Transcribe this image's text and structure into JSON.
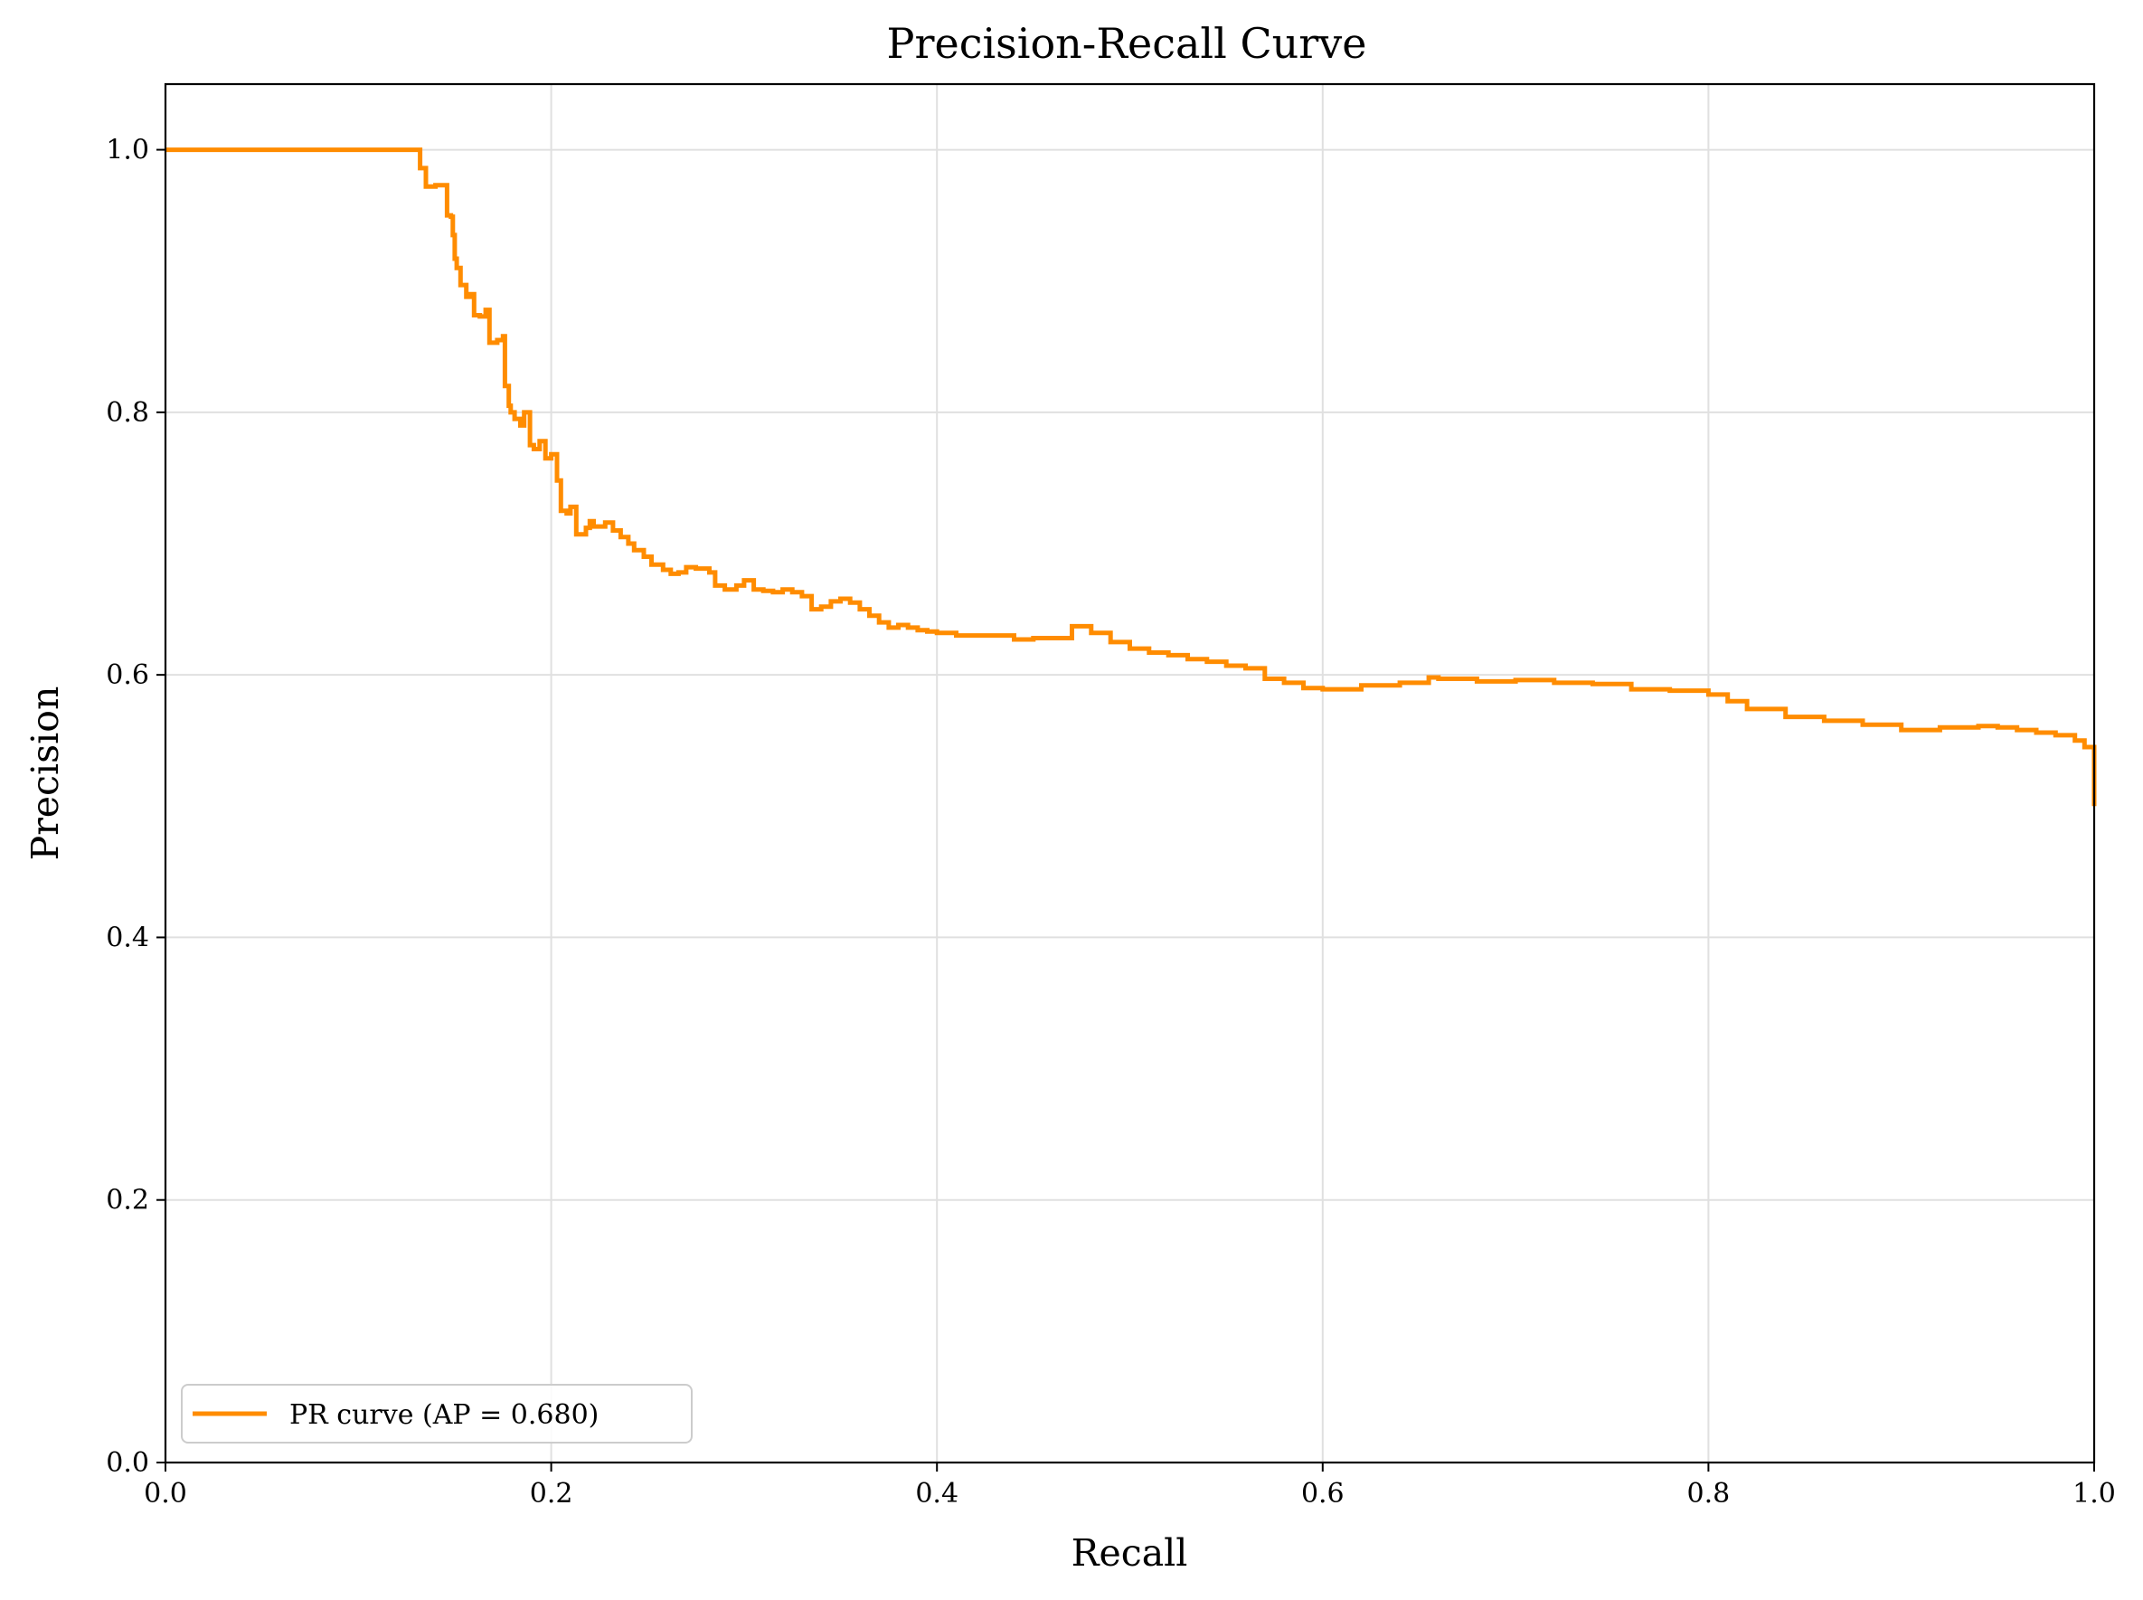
{
  "chart_data": {
    "type": "line",
    "title": "Precision-Recall Curve",
    "xlabel": "Recall",
    "ylabel": "Precision",
    "xlim": [
      0.0,
      1.0
    ],
    "ylim": [
      0.0,
      1.05
    ],
    "x_ticks": [
      "0.0",
      "0.2",
      "0.4",
      "0.6",
      "0.8",
      "1.0"
    ],
    "y_ticks": [
      "0.0",
      "0.2",
      "0.4",
      "0.6",
      "0.8",
      "1.0"
    ],
    "grid": true,
    "legend_position": "lower-left",
    "line_color": "#ff8c00",
    "series": [
      {
        "name": "PR curve (AP = 0.680)",
        "x": [
          0.0,
          0.13,
          0.132,
          0.135,
          0.14,
          0.146,
          0.148,
          0.149,
          0.15,
          0.151,
          0.153,
          0.156,
          0.158,
          0.16,
          0.163,
          0.166,
          0.168,
          0.172,
          0.175,
          0.176,
          0.178,
          0.179,
          0.181,
          0.184,
          0.186,
          0.189,
          0.191,
          0.194,
          0.197,
          0.2,
          0.203,
          0.205,
          0.208,
          0.21,
          0.213,
          0.218,
          0.22,
          0.222,
          0.228,
          0.232,
          0.236,
          0.24,
          0.243,
          0.248,
          0.252,
          0.258,
          0.262,
          0.266,
          0.27,
          0.275,
          0.282,
          0.285,
          0.29,
          0.296,
          0.3,
          0.305,
          0.31,
          0.315,
          0.32,
          0.325,
          0.33,
          0.335,
          0.34,
          0.345,
          0.35,
          0.355,
          0.36,
          0.365,
          0.37,
          0.375,
          0.38,
          0.385,
          0.39,
          0.395,
          0.4,
          0.41,
          0.42,
          0.43,
          0.44,
          0.45,
          0.47,
          0.48,
          0.49,
          0.5,
          0.51,
          0.52,
          0.53,
          0.54,
          0.55,
          0.56,
          0.57,
          0.58,
          0.59,
          0.6,
          0.62,
          0.64,
          0.655,
          0.66,
          0.68,
          0.7,
          0.72,
          0.74,
          0.76,
          0.78,
          0.8,
          0.81,
          0.82,
          0.84,
          0.86,
          0.88,
          0.9,
          0.92,
          0.94,
          0.95,
          0.96,
          0.97,
          0.98,
          0.99,
          0.995,
          1.0,
          1.0
        ],
        "y": [
          1.0,
          1.0,
          0.986,
          0.972,
          0.973,
          0.95,
          0.949,
          0.935,
          0.917,
          0.91,
          0.897,
          0.888,
          0.89,
          0.874,
          0.873,
          0.878,
          0.853,
          0.855,
          0.858,
          0.82,
          0.805,
          0.8,
          0.795,
          0.79,
          0.8,
          0.775,
          0.772,
          0.778,
          0.765,
          0.768,
          0.748,
          0.725,
          0.723,
          0.728,
          0.707,
          0.712,
          0.717,
          0.713,
          0.716,
          0.71,
          0.705,
          0.7,
          0.695,
          0.69,
          0.684,
          0.68,
          0.677,
          0.678,
          0.682,
          0.681,
          0.678,
          0.668,
          0.665,
          0.668,
          0.672,
          0.665,
          0.664,
          0.663,
          0.665,
          0.663,
          0.66,
          0.65,
          0.652,
          0.656,
          0.658,
          0.655,
          0.65,
          0.645,
          0.64,
          0.636,
          0.638,
          0.636,
          0.634,
          0.633,
          0.632,
          0.63,
          0.63,
          0.63,
          0.627,
          0.628,
          0.637,
          0.632,
          0.625,
          0.62,
          0.617,
          0.615,
          0.612,
          0.61,
          0.607,
          0.605,
          0.597,
          0.594,
          0.59,
          0.589,
          0.592,
          0.594,
          0.598,
          0.597,
          0.595,
          0.596,
          0.594,
          0.593,
          0.589,
          0.588,
          0.585,
          0.58,
          0.574,
          0.568,
          0.565,
          0.562,
          0.558,
          0.56,
          0.561,
          0.56,
          0.558,
          0.556,
          0.554,
          0.55,
          0.545,
          0.54,
          0.5
        ]
      }
    ]
  }
}
